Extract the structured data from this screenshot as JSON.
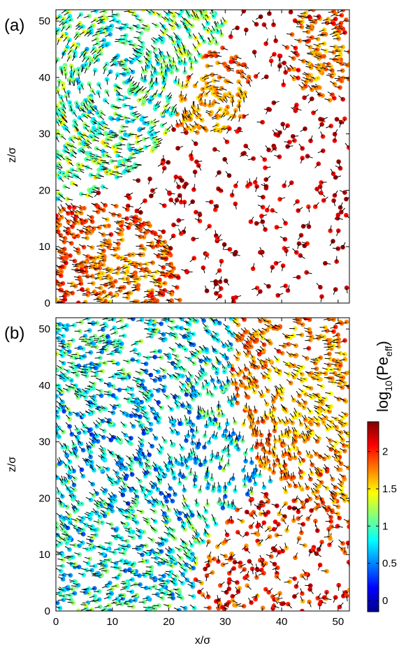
{
  "chart_data": [
    {
      "panel": "(a)",
      "type": "scatter",
      "xlabel": "",
      "ylabel": "z/σ",
      "xlim": [
        0,
        52
      ],
      "ylim": [
        0,
        52
      ],
      "xticks": [
        0,
        10,
        20,
        30,
        40,
        50
      ],
      "yticks": [
        0,
        10,
        20,
        30,
        40,
        50
      ],
      "color_quantity": "log10(Pe_eff)",
      "regions": [
        {
          "name": "vortex",
          "center": [
            12,
            40
          ],
          "radius": 13,
          "rotation": "counter-clockwise",
          "log10_pe_eff": [
            0.6,
            1.3
          ]
        },
        {
          "name": "ordered band",
          "center": [
            28,
            35
          ],
          "radius": 8,
          "rotation": "clockwise",
          "log10_pe_eff": [
            1.5,
            1.8
          ]
        },
        {
          "name": "ordered lower-left",
          "center": [
            12,
            6
          ],
          "radius": 8,
          "log10_pe_eff": [
            1.5,
            1.9
          ]
        },
        {
          "name": "ordered upper-right",
          "center": [
            48,
            42
          ],
          "radius": 6,
          "log10_pe_eff": [
            1.5,
            1.9
          ]
        },
        {
          "name": "dilute gas",
          "center": [
            36,
            22
          ],
          "radius": 18,
          "log10_pe_eff": [
            2.0,
            2.4
          ]
        }
      ]
    },
    {
      "panel": "(b)",
      "type": "scatter",
      "xlabel": "x/σ",
      "ylabel": "z/σ",
      "xlim": [
        0,
        52
      ],
      "ylim": [
        0,
        52
      ],
      "xticks": [
        0,
        10,
        20,
        30,
        40,
        50
      ],
      "yticks": [
        0,
        10,
        20,
        30,
        40,
        50
      ],
      "color_quantity": "log10(Pe_eff)",
      "regions": [
        {
          "name": "dense disordered",
          "center": [
            15,
            30
          ],
          "radius": 15,
          "log10_pe_eff": [
            0.3,
            1.1
          ]
        },
        {
          "name": "ordered band",
          "center": [
            44,
            38
          ],
          "radius": 10,
          "log10_pe_eff": [
            1.4,
            1.8
          ]
        },
        {
          "name": "dilute pocket",
          "center": [
            36,
            10
          ],
          "radius": 7,
          "log10_pe_eff": [
            1.6,
            2.3
          ]
        }
      ]
    }
  ],
  "colorbar": {
    "label_base": "log",
    "label_sub1": "10",
    "label_mid": "(Pe",
    "label_sub2": "eff",
    "label_end": ")",
    "range": [
      -0.15,
      2.4
    ],
    "ticks": [
      0,
      0.5,
      1,
      1.5,
      2
    ],
    "tick_labels": [
      "0",
      "0.5",
      "1",
      "1.5",
      "2"
    ],
    "colormap": "jet"
  },
  "panels": {
    "a_label": "(a)",
    "b_label": "(b)",
    "a_ylabel": "z/σ",
    "b_ylabel": "z/σ",
    "b_xlabel": "x/σ"
  }
}
